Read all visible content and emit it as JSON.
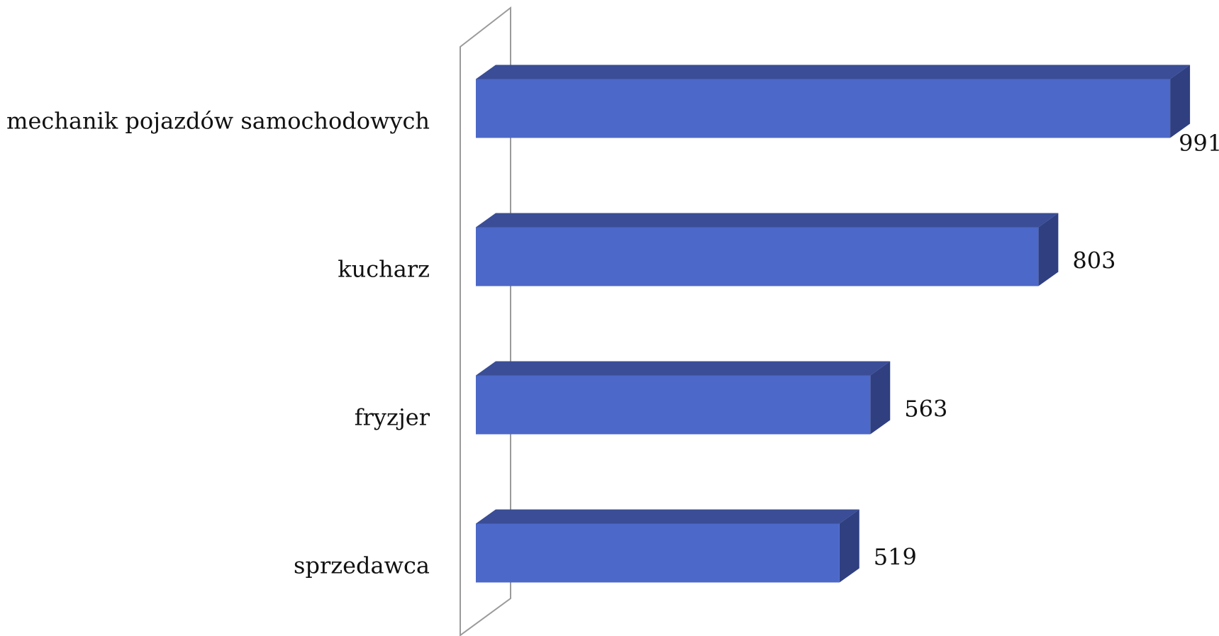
{
  "chart_data": {
    "type": "bar3d_horizontal",
    "categories": [
      "mechanik pojazdów samochodowych",
      "kucharz",
      "fryzjer",
      "sprzedawca"
    ],
    "values": [
      991,
      803,
      563,
      519
    ],
    "color": "#4c68c8"
  }
}
